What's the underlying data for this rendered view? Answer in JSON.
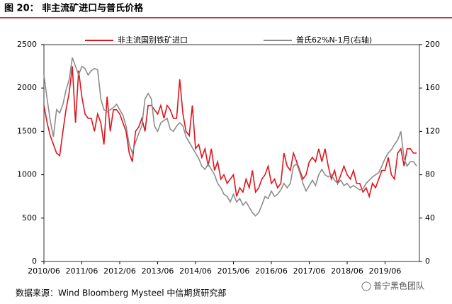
{
  "chart_data": {
    "type": "line",
    "title": "图 20：    非主流矿进口与普氏价格",
    "source": "数据来源：Wind Bloomberg Mysteel 中信期货研究部",
    "watermark": "普宁黑色团队",
    "categories": [
      "2010/06",
      null,
      null,
      null,
      null,
      null,
      null,
      null,
      null,
      null,
      null,
      null,
      "2011/06",
      null,
      null,
      null,
      null,
      null,
      null,
      null,
      null,
      null,
      null,
      null,
      "2012/06",
      null,
      null,
      null,
      null,
      null,
      null,
      null,
      null,
      null,
      null,
      null,
      "2013/06",
      null,
      null,
      null,
      null,
      null,
      null,
      null,
      null,
      null,
      null,
      null,
      "2014/06",
      null,
      null,
      null,
      null,
      null,
      null,
      null,
      null,
      null,
      null,
      null,
      "2015/06",
      null,
      null,
      null,
      null,
      null,
      null,
      null,
      null,
      null,
      null,
      null,
      "2016/06",
      null,
      null,
      null,
      null,
      null,
      null,
      null,
      null,
      null,
      null,
      null,
      "2017/06",
      null,
      null,
      null,
      null,
      null,
      null,
      null,
      null,
      null,
      null,
      null,
      "2018/06",
      null,
      null,
      null,
      null,
      null,
      null,
      null,
      null,
      null,
      null,
      null,
      "2019/06",
      null,
      null,
      null,
      null,
      null,
      null,
      null,
      null,
      null,
      null
    ],
    "series": [
      {
        "name": "非主流国别铁矿进口",
        "color": "#e0141e",
        "axis": "y",
        "values": [
          1800,
          1600,
          1450,
          1350,
          1250,
          1220,
          1500,
          1750,
          1950,
          2250,
          1600,
          2200,
          1900,
          1700,
          1650,
          1650,
          1500,
          1700,
          1600,
          1350,
          1900,
          1500,
          1750,
          1750,
          1700,
          1600,
          1500,
          1250,
          1150,
          1500,
          1550,
          1650,
          1500,
          1800,
          1800,
          1750,
          1700,
          1800,
          1650,
          1800,
          1750,
          1650,
          1650,
          2100,
          1700,
          1500,
          1450,
          1800,
          1300,
          1350,
          1200,
          1300,
          1100,
          1300,
          1050,
          1150,
          950,
          1000,
          900,
          950,
          1000,
          750,
          850,
          800,
          950,
          850,
          1050,
          800,
          850,
          950,
          1000,
          1100,
          900,
          950,
          850,
          900,
          1250,
          1100,
          1050,
          1250,
          1150,
          1050,
          950,
          1000,
          1150,
          1200,
          1150,
          1300,
          1150,
          1300,
          1100,
          950,
          1050,
          900,
          1000,
          1100,
          1000,
          950,
          1050,
          900,
          900,
          800,
          850,
          750,
          900,
          850,
          950,
          1050,
          1050,
          1200,
          1000,
          950,
          1250,
          1300,
          1100,
          1300,
          1300,
          1250,
          1250
        ]
      },
      {
        "name": "普氏62%N-1月(右轴)",
        "color": "#8c8c8c",
        "axis": "y2",
        "values": [
          172,
          150,
          130,
          115,
          140,
          137,
          145,
          158,
          168,
          188,
          180,
          172,
          180,
          178,
          172,
          176,
          178,
          177,
          150,
          140,
          138,
          140,
          142,
          145,
          140,
          135,
          125,
          108,
          100,
          110,
          118,
          125,
          150,
          155,
          150,
          125,
          120,
          128,
          130,
          132,
          122,
          120,
          125,
          128,
          125,
          115,
          110,
          105,
          100,
          95,
          88,
          85,
          90,
          85,
          80,
          72,
          68,
          62,
          60,
          55,
          62,
          55,
          58,
          52,
          55,
          50,
          45,
          42,
          45,
          52,
          60,
          58,
          65,
          60,
          62,
          66,
          72,
          68,
          72,
          88,
          90,
          82,
          72,
          65,
          70,
          75,
          70,
          80,
          85,
          80,
          78,
          80,
          75,
          72,
          75,
          70,
          72,
          68,
          70,
          68,
          66,
          67,
          72,
          75,
          78,
          80,
          82,
          88,
          95,
          100,
          103,
          108,
          112,
          120,
          95,
          88,
          92,
          92,
          88
        ]
      }
    ],
    "ylim": [
      0,
      2500
    ],
    "yticks": [
      0,
      500,
      1000,
      1500,
      2000,
      2500
    ],
    "y2lim": [
      0,
      200
    ],
    "y2ticks": [
      0,
      40,
      80,
      120,
      160,
      200
    ]
  }
}
